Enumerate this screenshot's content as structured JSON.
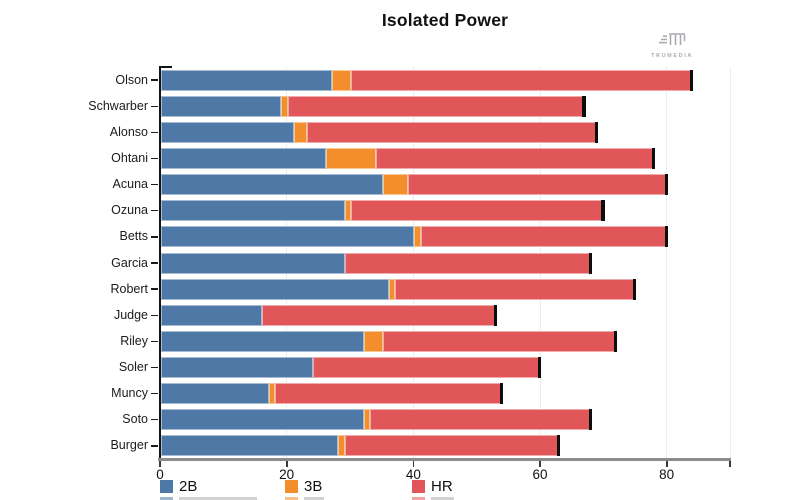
{
  "title": "Isolated Power",
  "logo": {
    "text": "TRUMEDIA"
  },
  "chart_data": {
    "type": "bar",
    "orientation": "horizontal",
    "stacked": true,
    "title": "Isolated Power",
    "categories": [
      "Olson",
      "Schwarber",
      "Alonso",
      "Ohtani",
      "Acuna",
      "Ozuna",
      "Betts",
      "Garcia",
      "Robert",
      "Judge",
      "Riley",
      "Soler",
      "Muncy",
      "Soto",
      "Burger"
    ],
    "series": [
      {
        "name": "2B",
        "color": "#4e79a7",
        "values": [
          27,
          19,
          21,
          26,
          35,
          29,
          40,
          29,
          36,
          16,
          32,
          24,
          17,
          32,
          28
        ]
      },
      {
        "name": "3B",
        "color": "#f28e2b",
        "values": [
          3,
          1,
          2,
          8,
          4,
          1,
          1,
          0,
          1,
          0,
          3,
          0,
          1,
          1,
          1
        ]
      },
      {
        "name": "HR",
        "color": "#e15759",
        "values": [
          54,
          47,
          46,
          44,
          41,
          40,
          39,
          39,
          38,
          37,
          37,
          36,
          36,
          35,
          34
        ]
      }
    ],
    "totals": [
      84,
      67,
      69,
      78,
      80,
      70,
      80,
      68,
      75,
      53,
      72,
      60,
      54,
      68,
      63
    ],
    "xlabel": "",
    "ylabel": "",
    "xlim": [
      0,
      90
    ],
    "xticks": [
      0,
      20,
      40,
      60,
      80
    ],
    "grid": true,
    "legend_position": "bottom",
    "bar_end_cap_color": "#0d0d0d",
    "axis_line_color": "#8c8c8c",
    "gridline_color": "#ececec"
  }
}
